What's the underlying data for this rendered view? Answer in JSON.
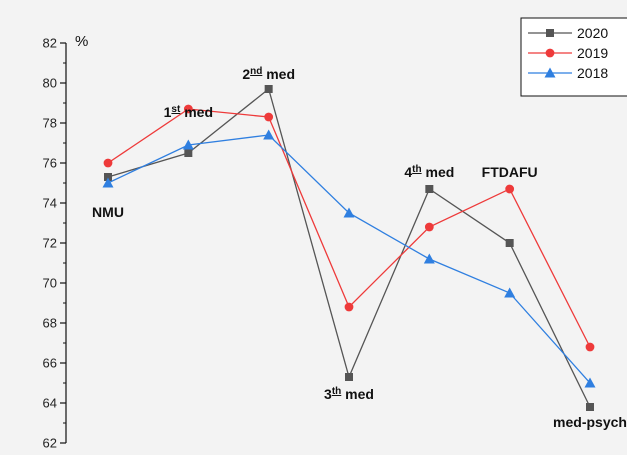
{
  "chart_data": {
    "type": "line",
    "ylabel": "%",
    "ylim": [
      62,
      82
    ],
    "yticks": [
      62,
      64,
      66,
      68,
      70,
      72,
      74,
      76,
      78,
      80,
      82
    ],
    "categories": [
      "NMU",
      "1st med",
      "2nd med",
      "3th med",
      "4th med",
      "FTDAFU",
      "med-psych"
    ],
    "grid": false,
    "legend_position": "top-right",
    "series": [
      {
        "name": "2020",
        "color": "#555555",
        "marker": "square",
        "values": [
          75.3,
          76.5,
          79.7,
          65.3,
          74.7,
          72.0,
          63.8
        ]
      },
      {
        "name": "2019",
        "color": "#ee3a3a",
        "marker": "circle",
        "values": [
          76.0,
          78.7,
          78.3,
          68.8,
          72.8,
          74.7,
          66.8
        ]
      },
      {
        "name": "2018",
        "color": "#2f7fe0",
        "marker": "triangle",
        "values": [
          75.0,
          76.9,
          77.4,
          73.5,
          71.2,
          69.5,
          65.0
        ]
      }
    ],
    "annotations": [
      {
        "cat": 0,
        "value": 73.3,
        "anchor": "middle",
        "base": "NMU",
        "sup": "",
        "tail": ""
      },
      {
        "cat": 1,
        "value": 78.3,
        "anchor": "middle",
        "base": "1",
        "sup": "st",
        "tail": " med"
      },
      {
        "cat": 2,
        "value": 80.2,
        "anchor": "middle",
        "base": "2",
        "sup": "nd",
        "tail": " med"
      },
      {
        "cat": 3,
        "value": 64.2,
        "anchor": "middle",
        "base": "3",
        "sup": "th",
        "tail": " med"
      },
      {
        "cat": 4,
        "value": 75.3,
        "anchor": "middle",
        "base": "4",
        "sup": "th",
        "tail": " med"
      },
      {
        "cat": 5,
        "value": 75.3,
        "anchor": "middle",
        "base": "FTDAFU",
        "sup": "",
        "tail": ""
      },
      {
        "cat": 6,
        "value": 62.8,
        "anchor": "middle",
        "base": "med-psych",
        "sup": "",
        "tail": ""
      }
    ]
  }
}
